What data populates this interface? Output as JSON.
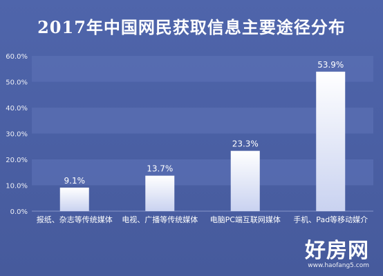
{
  "header": {
    "title": "2017年中国网民获取信息主要途径分布"
  },
  "watermark": {
    "name": "好房网",
    "url": "www.haofang5.com"
  },
  "chart_data": {
    "type": "bar",
    "title": "2017年中国网民获取信息主要途径分布",
    "xlabel": "",
    "ylabel": "",
    "categories": [
      "报纸、杂志等传统媒体",
      "电视、广播等传统媒体",
      "电脑PC端互联网媒体",
      "手机、Pad等移动媒介"
    ],
    "values": [
      9.1,
      13.7,
      23.3,
      53.9
    ],
    "value_labels": [
      "9.1%",
      "13.7%",
      "23.3%",
      "53.9%"
    ],
    "ylim": [
      0,
      60
    ],
    "yticks": [
      "0.0%",
      "10.0%",
      "20.0%",
      "30.0%",
      "40.0%",
      "50.0%",
      "60.0%"
    ],
    "grid": "alternating horizontal bands",
    "legend": "none",
    "colors": {
      "bar_top": "#ffffff",
      "bar_bottom": "#c9d2f0",
      "band": "#5a6fb3",
      "text": "#ffffff"
    }
  }
}
